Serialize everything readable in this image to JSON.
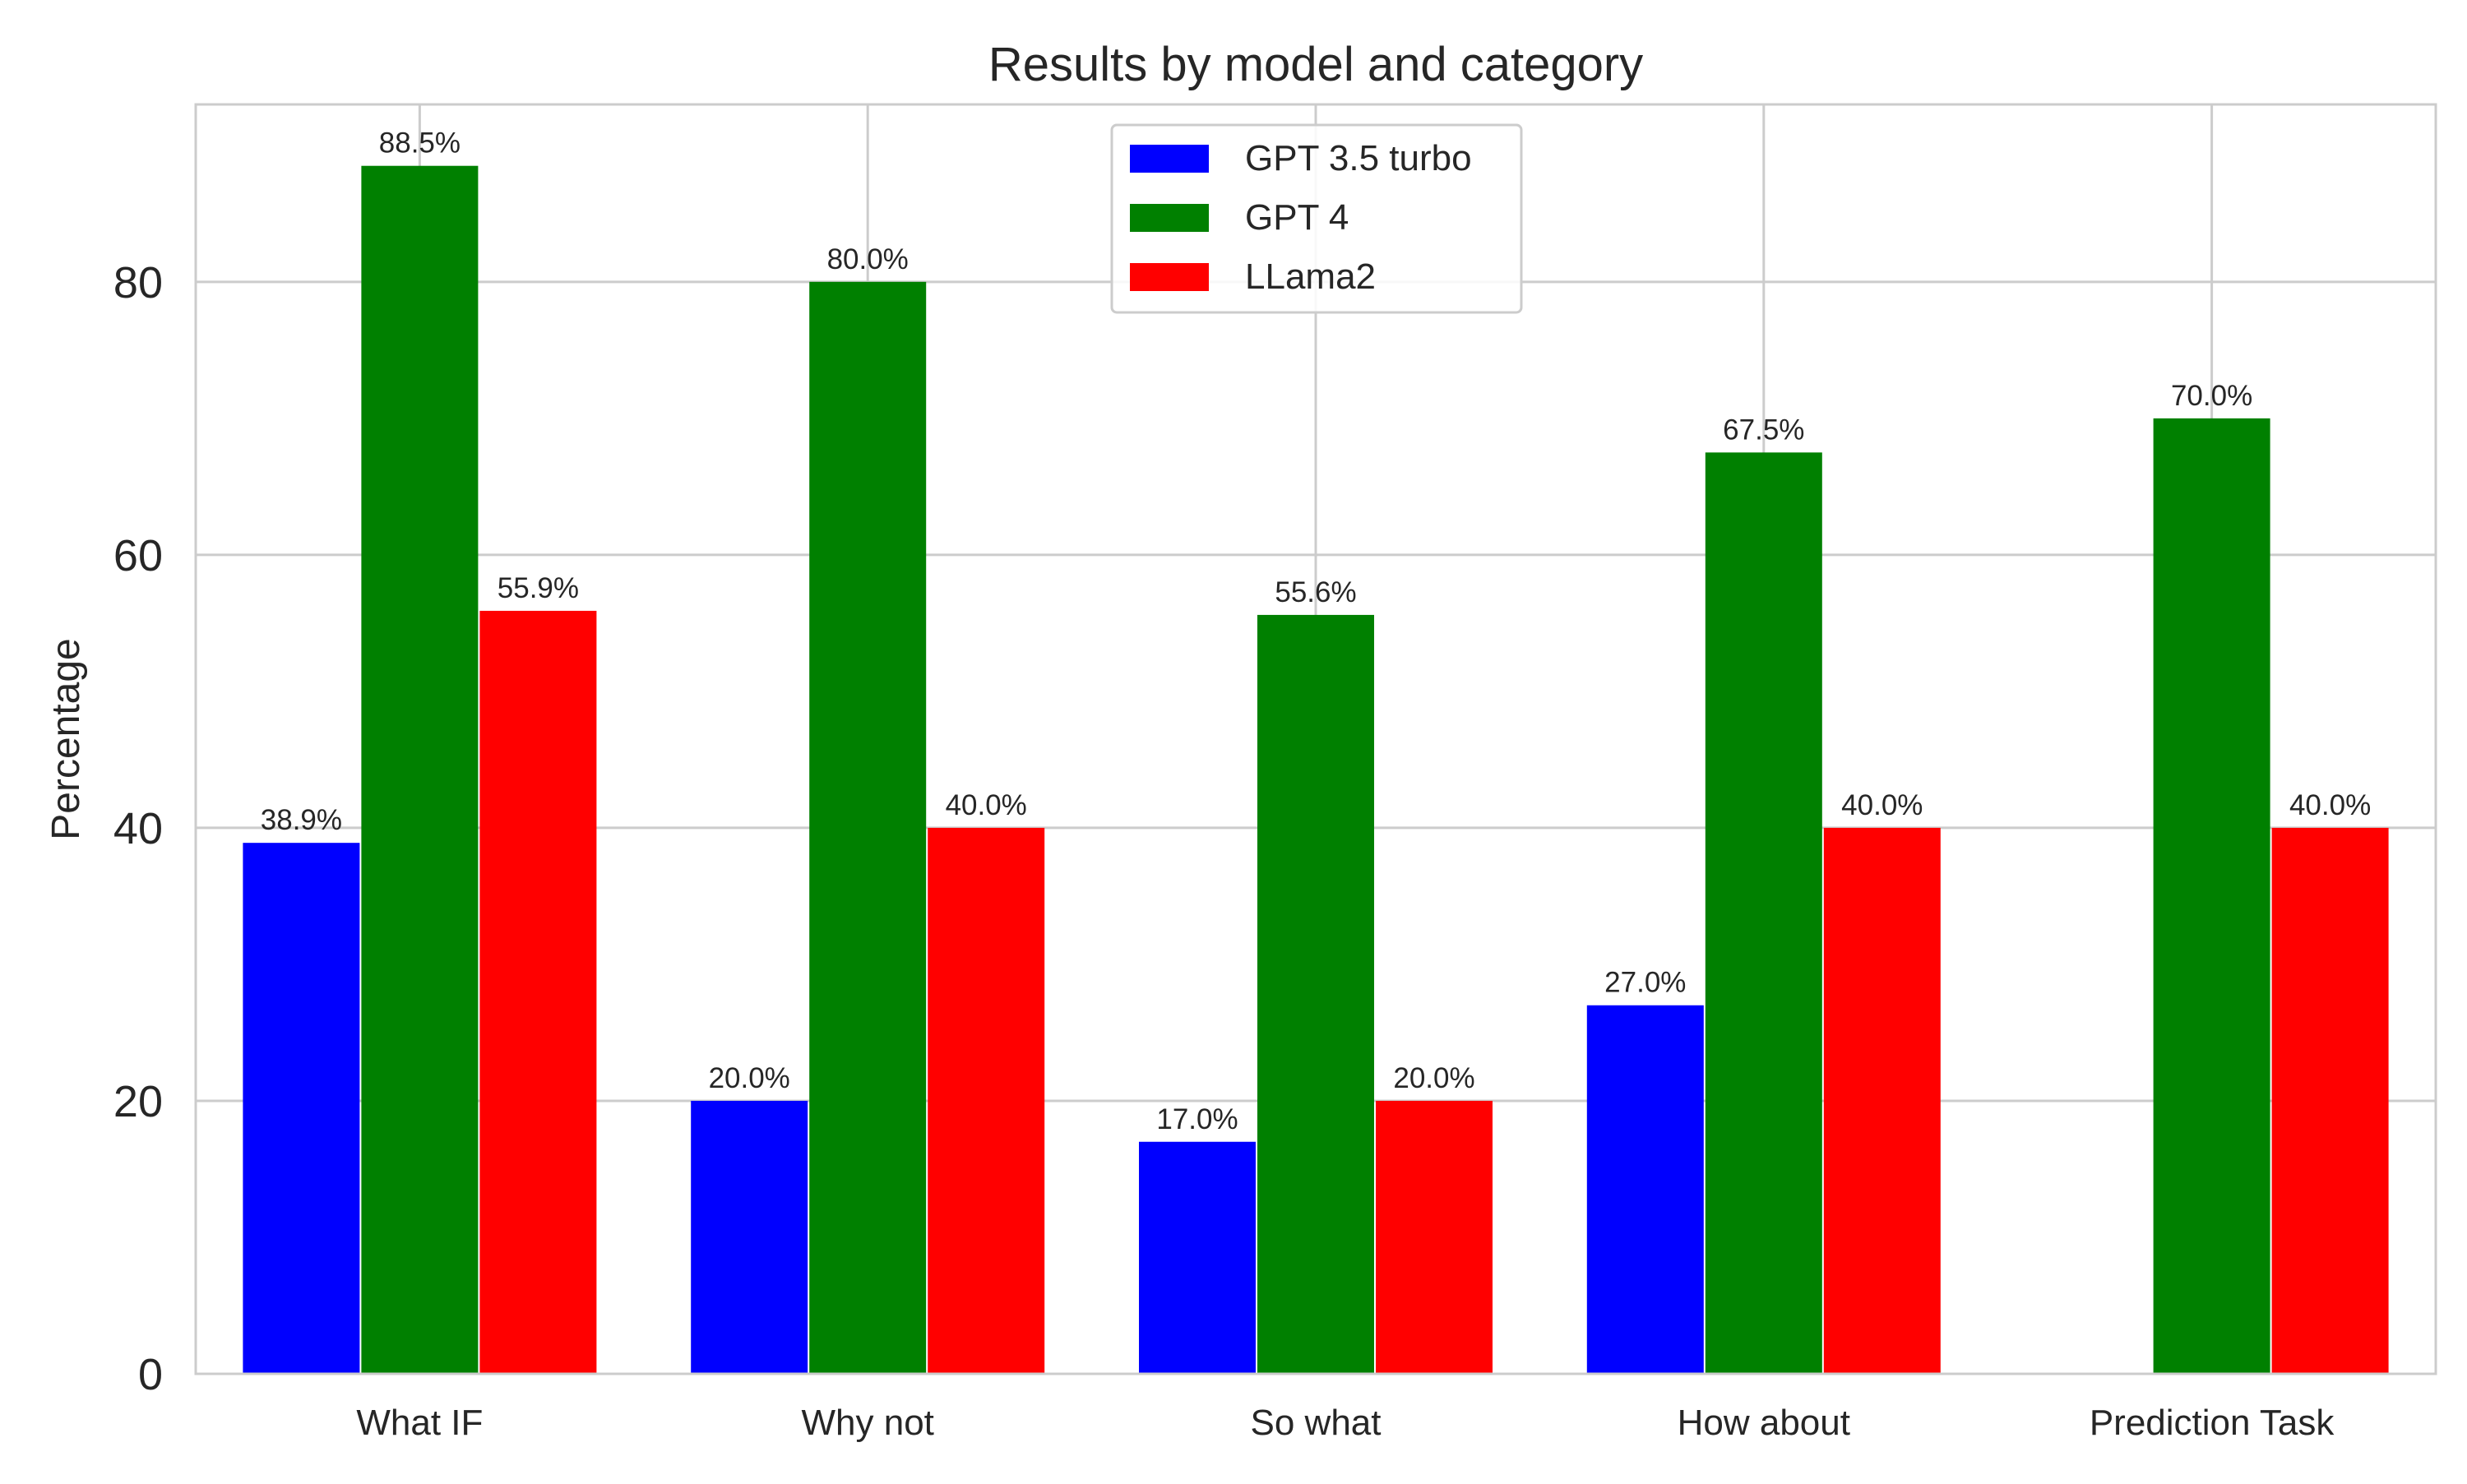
{
  "chart_data": {
    "type": "bar",
    "title": "Results by model and category",
    "xlabel": "",
    "ylabel": "Percentage",
    "categories": [
      "What IF",
      "Why not",
      "So what",
      "How about",
      "Prediction Task"
    ],
    "series": [
      {
        "name": "GPT 3.5 turbo",
        "color": "#0000ff",
        "values": [
          38.9,
          20.0,
          17.0,
          27.0,
          null
        ]
      },
      {
        "name": "GPT 4",
        "color": "#008000",
        "values": [
          88.5,
          80.0,
          55.6,
          67.5,
          70.0
        ]
      },
      {
        "name": "LLama2",
        "color": "#ff0000",
        "values": [
          55.9,
          40.0,
          20.0,
          40.0,
          40.0
        ]
      }
    ],
    "ylim": [
      0,
      93
    ],
    "yticks": [
      0,
      20,
      40,
      60,
      80
    ],
    "grid": true,
    "legend_position": "top-center",
    "value_label_format": "{v}%"
  }
}
